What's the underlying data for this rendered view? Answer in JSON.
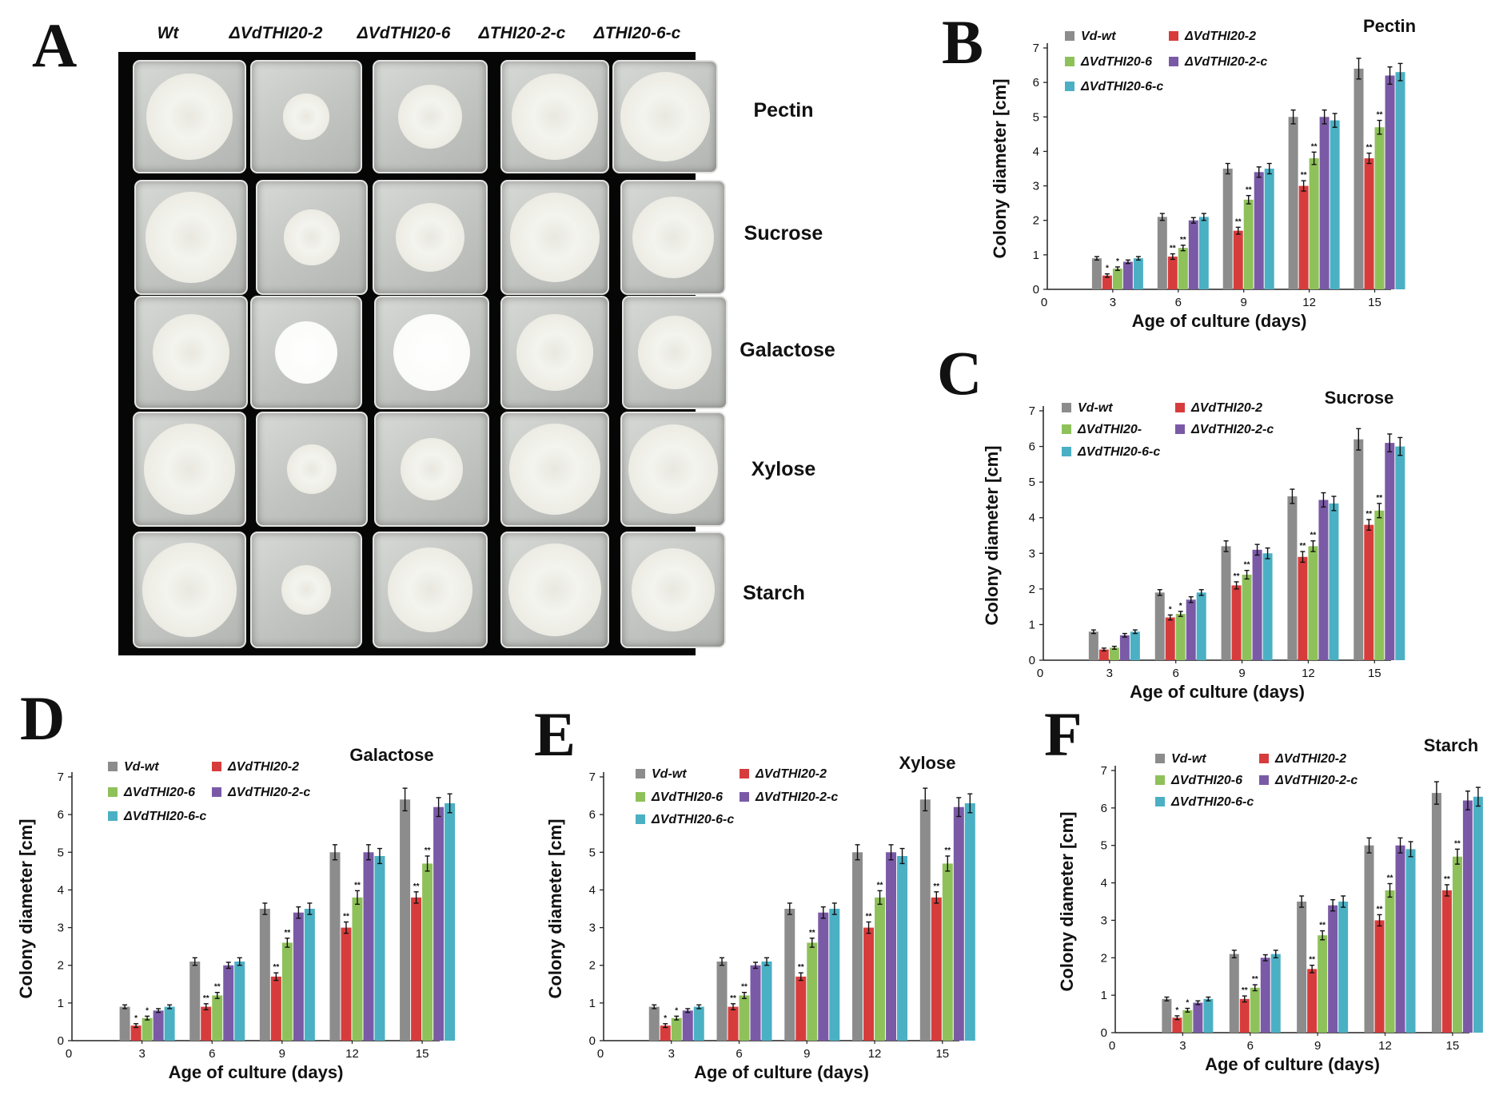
{
  "panel_letters": [
    "A",
    "B",
    "C",
    "D",
    "E",
    "F"
  ],
  "photo": {
    "column_headers": [
      "Wt",
      "ΔVdTHI20-2",
      "ΔVdTHI20-6",
      "ΔTHI20-2-c",
      "ΔTHI20-6-c"
    ],
    "row_labels": [
      "Pectin",
      "Sucrose",
      "Galactose",
      "Xylose",
      "Starch"
    ],
    "colony_diameter_fraction": [
      [
        0.78,
        0.42,
        0.58,
        0.82,
        0.88
      ],
      [
        0.82,
        0.52,
        0.62,
        0.85,
        0.8
      ],
      [
        0.7,
        0.58,
        0.7,
        0.72,
        0.72
      ],
      [
        0.82,
        0.45,
        0.56,
        0.86,
        0.88
      ],
      [
        0.85,
        0.46,
        0.76,
        0.88,
        0.82
      ]
    ]
  },
  "chart_data": [
    {
      "panel": "B",
      "type": "bar",
      "title": "Pectin",
      "xlabel": "Age of culture (days)",
      "ylabel": "Colony diameter [cm]",
      "categories": [
        "3",
        "6",
        "9",
        "12",
        "15"
      ],
      "ylim": [
        0,
        7
      ],
      "xaxis_origin_label": "0",
      "legend": [
        "Vd-wt",
        "ΔVdTHI20-2",
        "ΔVdTHI20-6",
        "ΔVdTHI20-2-c",
        "ΔVdTHI20-6-c"
      ],
      "series": [
        {
          "values": [
            0.9,
            2.1,
            3.5,
            5.0,
            6.4
          ],
          "errors": [
            0.05,
            0.1,
            0.15,
            0.2,
            0.3
          ],
          "color": "#8c8c8c"
        },
        {
          "values": [
            0.4,
            0.95,
            1.7,
            3.0,
            3.8
          ],
          "errors": [
            0.05,
            0.08,
            0.1,
            0.15,
            0.15
          ],
          "color": "#d73c3c"
        },
        {
          "values": [
            0.6,
            1.2,
            2.6,
            3.8,
            4.7
          ],
          "errors": [
            0.05,
            0.08,
            0.12,
            0.18,
            0.2
          ],
          "color": "#8fc15a"
        },
        {
          "values": [
            0.8,
            2.0,
            3.4,
            5.0,
            6.2
          ],
          "errors": [
            0.05,
            0.08,
            0.15,
            0.2,
            0.25
          ],
          "color": "#7a5aa6"
        },
        {
          "values": [
            0.9,
            2.1,
            3.5,
            4.9,
            6.3
          ],
          "errors": [
            0.05,
            0.1,
            0.15,
            0.2,
            0.25
          ],
          "color": "#4bb0c4"
        }
      ],
      "significance": [
        {
          "series": 1,
          "category": 0,
          "mark": "*"
        },
        {
          "series": 2,
          "category": 0,
          "mark": "*"
        },
        {
          "series": 1,
          "category": 1,
          "mark": "**"
        },
        {
          "series": 2,
          "category": 1,
          "mark": "**"
        },
        {
          "series": 1,
          "category": 2,
          "mark": "**"
        },
        {
          "series": 2,
          "category": 2,
          "mark": "**"
        },
        {
          "series": 1,
          "category": 3,
          "mark": "**"
        },
        {
          "series": 2,
          "category": 3,
          "mark": "**"
        },
        {
          "series": 1,
          "category": 4,
          "mark": "**"
        },
        {
          "series": 2,
          "category": 4,
          "mark": "**"
        }
      ]
    },
    {
      "panel": "C",
      "type": "bar",
      "title": "Sucrose",
      "xlabel": "Age of culture (days)",
      "ylabel": "Colony diameter [cm]",
      "categories": [
        "3",
        "6",
        "9",
        "12",
        "15"
      ],
      "ylim": [
        0,
        7
      ],
      "xaxis_origin_label": "0",
      "legend": [
        "Vd-wt",
        "ΔVdTHI20-2",
        "ΔVdTHI20-",
        "ΔVdTHI20-2-c",
        "ΔVdTHI20-6-c"
      ],
      "series": [
        {
          "values": [
            0.8,
            1.9,
            3.2,
            4.6,
            6.2
          ],
          "errors": [
            0.05,
            0.08,
            0.15,
            0.2,
            0.3
          ],
          "color": "#8c8c8c"
        },
        {
          "values": [
            0.3,
            1.2,
            2.1,
            2.9,
            3.8
          ],
          "errors": [
            0.04,
            0.07,
            0.1,
            0.15,
            0.15
          ],
          "color": "#d73c3c"
        },
        {
          "values": [
            0.35,
            1.3,
            2.4,
            3.2,
            4.2
          ],
          "errors": [
            0.04,
            0.07,
            0.12,
            0.15,
            0.2
          ],
          "color": "#8fc15a"
        },
        {
          "values": [
            0.7,
            1.7,
            3.1,
            4.5,
            6.1
          ],
          "errors": [
            0.05,
            0.08,
            0.15,
            0.2,
            0.25
          ],
          "color": "#7a5aa6"
        },
        {
          "values": [
            0.8,
            1.9,
            3.0,
            4.4,
            6.0
          ],
          "errors": [
            0.05,
            0.08,
            0.15,
            0.2,
            0.25
          ],
          "color": "#4bb0c4"
        }
      ],
      "significance": [
        {
          "series": 1,
          "category": 1,
          "mark": "*"
        },
        {
          "series": 2,
          "category": 1,
          "mark": "*"
        },
        {
          "series": 1,
          "category": 2,
          "mark": "**"
        },
        {
          "series": 2,
          "category": 2,
          "mark": "**"
        },
        {
          "series": 1,
          "category": 3,
          "mark": "**"
        },
        {
          "series": 2,
          "category": 3,
          "mark": "**"
        },
        {
          "series": 1,
          "category": 4,
          "mark": "**"
        },
        {
          "series": 2,
          "category": 4,
          "mark": "**"
        }
      ]
    },
    {
      "panel": "D",
      "type": "bar",
      "title": "Galactose",
      "xlabel": "Age of culture (days)",
      "ylabel": "Colony diameter [cm]",
      "categories": [
        "3",
        "6",
        "9",
        "12",
        "15"
      ],
      "ylim": [
        0,
        7
      ],
      "xaxis_origin_label": "0",
      "legend": [
        "Vd-wt",
        "ΔVdTHI20-2",
        "ΔVdTHI20-6",
        "ΔVdTHI20-2-c",
        "ΔVdTHI20-6-c"
      ],
      "series": [
        {
          "values": [
            0.9,
            2.1,
            3.5,
            5.0,
            6.4
          ],
          "errors": [
            0.05,
            0.1,
            0.15,
            0.2,
            0.3
          ],
          "color": "#8c8c8c"
        },
        {
          "values": [
            0.4,
            0.9,
            1.7,
            3.0,
            3.8
          ],
          "errors": [
            0.05,
            0.08,
            0.1,
            0.15,
            0.15
          ],
          "color": "#d73c3c"
        },
        {
          "values": [
            0.6,
            1.2,
            2.6,
            3.8,
            4.7
          ],
          "errors": [
            0.05,
            0.08,
            0.12,
            0.18,
            0.2
          ],
          "color": "#8fc15a"
        },
        {
          "values": [
            0.8,
            2.0,
            3.4,
            5.0,
            6.2
          ],
          "errors": [
            0.05,
            0.08,
            0.15,
            0.2,
            0.25
          ],
          "color": "#7a5aa6"
        },
        {
          "values": [
            0.9,
            2.1,
            3.5,
            4.9,
            6.3
          ],
          "errors": [
            0.05,
            0.1,
            0.15,
            0.2,
            0.25
          ],
          "color": "#4bb0c4"
        }
      ],
      "significance": [
        {
          "series": 1,
          "category": 0,
          "mark": "*"
        },
        {
          "series": 2,
          "category": 0,
          "mark": "*"
        },
        {
          "series": 1,
          "category": 1,
          "mark": "**"
        },
        {
          "series": 2,
          "category": 1,
          "mark": "**"
        },
        {
          "series": 1,
          "category": 2,
          "mark": "**"
        },
        {
          "series": 2,
          "category": 2,
          "mark": "**"
        },
        {
          "series": 1,
          "category": 3,
          "mark": "**"
        },
        {
          "series": 2,
          "category": 3,
          "mark": "**"
        },
        {
          "series": 1,
          "category": 4,
          "mark": "**"
        },
        {
          "series": 2,
          "category": 4,
          "mark": "**"
        }
      ]
    },
    {
      "panel": "E",
      "type": "bar",
      "title": "Xylose",
      "xlabel": "Age of culture (days)",
      "ylabel": "Colony diameter [cm]",
      "categories": [
        "3",
        "6",
        "9",
        "12",
        "15"
      ],
      "ylim": [
        0,
        7
      ],
      "xaxis_origin_label": "0",
      "legend": [
        "Vd-wt",
        "ΔVdTHI20-2",
        "ΔVdTHI20-6",
        "ΔVdTHI20-2-c",
        "ΔVdTHI20-6-c"
      ],
      "series": [
        {
          "values": [
            0.9,
            2.1,
            3.5,
            5.0,
            6.4
          ],
          "errors": [
            0.05,
            0.1,
            0.15,
            0.2,
            0.3
          ],
          "color": "#8c8c8c"
        },
        {
          "values": [
            0.4,
            0.9,
            1.7,
            3.0,
            3.8
          ],
          "errors": [
            0.05,
            0.08,
            0.1,
            0.15,
            0.15
          ],
          "color": "#d73c3c"
        },
        {
          "values": [
            0.6,
            1.2,
            2.6,
            3.8,
            4.7
          ],
          "errors": [
            0.05,
            0.08,
            0.12,
            0.18,
            0.2
          ],
          "color": "#8fc15a"
        },
        {
          "values": [
            0.8,
            2.0,
            3.4,
            5.0,
            6.2
          ],
          "errors": [
            0.05,
            0.08,
            0.15,
            0.2,
            0.25
          ],
          "color": "#7a5aa6"
        },
        {
          "values": [
            0.9,
            2.1,
            3.5,
            4.9,
            6.3
          ],
          "errors": [
            0.05,
            0.1,
            0.15,
            0.2,
            0.25
          ],
          "color": "#4bb0c4"
        }
      ],
      "significance": [
        {
          "series": 1,
          "category": 0,
          "mark": "*"
        },
        {
          "series": 2,
          "category": 0,
          "mark": "*"
        },
        {
          "series": 1,
          "category": 1,
          "mark": "**"
        },
        {
          "series": 2,
          "category": 1,
          "mark": "**"
        },
        {
          "series": 1,
          "category": 2,
          "mark": "**"
        },
        {
          "series": 2,
          "category": 2,
          "mark": "**"
        },
        {
          "series": 1,
          "category": 3,
          "mark": "**"
        },
        {
          "series": 2,
          "category": 3,
          "mark": "**"
        },
        {
          "series": 1,
          "category": 4,
          "mark": "**"
        },
        {
          "series": 2,
          "category": 4,
          "mark": "**"
        }
      ]
    },
    {
      "panel": "F",
      "type": "bar",
      "title": "Starch",
      "xlabel": "Age of culture (days)",
      "ylabel": "Colony diameter [cm]",
      "categories": [
        "3",
        "6",
        "9",
        "12",
        "15"
      ],
      "ylim": [
        0,
        7
      ],
      "xaxis_origin_label": "0",
      "legend": [
        "Vd-wt",
        "ΔVdTHI20-2",
        "ΔVdTHI20-6",
        "ΔVdTHI20-2-c",
        "ΔVdTHI20-6-c"
      ],
      "series": [
        {
          "values": [
            0.9,
            2.1,
            3.5,
            5.0,
            6.4
          ],
          "errors": [
            0.05,
            0.1,
            0.15,
            0.2,
            0.3
          ],
          "color": "#8c8c8c"
        },
        {
          "values": [
            0.4,
            0.9,
            1.7,
            3.0,
            3.8
          ],
          "errors": [
            0.05,
            0.08,
            0.1,
            0.15,
            0.15
          ],
          "color": "#d73c3c"
        },
        {
          "values": [
            0.6,
            1.2,
            2.6,
            3.8,
            4.7
          ],
          "errors": [
            0.05,
            0.08,
            0.12,
            0.18,
            0.2
          ],
          "color": "#8fc15a"
        },
        {
          "values": [
            0.8,
            2.0,
            3.4,
            5.0,
            6.2
          ],
          "errors": [
            0.05,
            0.08,
            0.15,
            0.2,
            0.25
          ],
          "color": "#7a5aa6"
        },
        {
          "values": [
            0.9,
            2.1,
            3.5,
            4.9,
            6.3
          ],
          "errors": [
            0.05,
            0.1,
            0.15,
            0.2,
            0.25
          ],
          "color": "#4bb0c4"
        }
      ],
      "significance": [
        {
          "series": 1,
          "category": 0,
          "mark": "*"
        },
        {
          "series": 2,
          "category": 0,
          "mark": "*"
        },
        {
          "series": 1,
          "category": 1,
          "mark": "**"
        },
        {
          "series": 2,
          "category": 1,
          "mark": "**"
        },
        {
          "series": 1,
          "category": 2,
          "mark": "**"
        },
        {
          "series": 2,
          "category": 2,
          "mark": "**"
        },
        {
          "series": 1,
          "category": 3,
          "mark": "**"
        },
        {
          "series": 2,
          "category": 3,
          "mark": "**"
        },
        {
          "series": 1,
          "category": 4,
          "mark": "**"
        },
        {
          "series": 2,
          "category": 4,
          "mark": "**"
        }
      ]
    }
  ]
}
